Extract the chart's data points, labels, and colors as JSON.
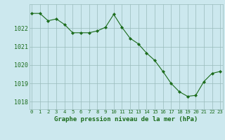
{
  "x": [
    0,
    1,
    2,
    3,
    4,
    5,
    6,
    7,
    8,
    9,
    10,
    11,
    12,
    13,
    14,
    15,
    16,
    17,
    18,
    19,
    20,
    21,
    22,
    23
  ],
  "y": [
    1022.8,
    1022.8,
    1022.4,
    1022.5,
    1022.2,
    1021.75,
    1021.75,
    1021.75,
    1021.85,
    1022.05,
    1022.75,
    1022.05,
    1021.45,
    1021.15,
    1020.65,
    1020.25,
    1019.65,
    1019.0,
    1018.55,
    1018.3,
    1018.35,
    1019.1,
    1019.55,
    1019.65
  ],
  "line_color": "#1a6b1a",
  "marker": "D",
  "marker_size": 2.2,
  "bg_color": "#cce8ee",
  "grid_color": "#99bbbb",
  "ylabel_ticks": [
    1018,
    1019,
    1020,
    1021,
    1022
  ],
  "ylim": [
    1017.6,
    1023.3
  ],
  "xlim": [
    -0.3,
    23.3
  ],
  "xlabel": "Graphe pression niveau de la mer (hPa)",
  "xlabel_color": "#1a6b1a",
  "tick_label_color": "#1a6b1a",
  "tick_fontsize": 5.2,
  "ytick_fontsize": 6.0,
  "xlabel_fontsize": 6.5
}
